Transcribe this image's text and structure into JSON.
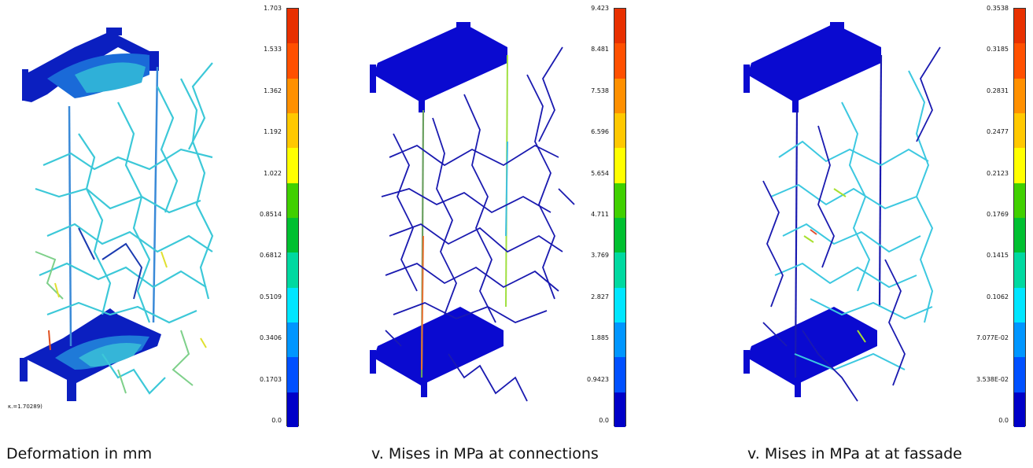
{
  "colors": [
    "#0000c8",
    "#0050ff",
    "#0096ff",
    "#00e6ff",
    "#00d9a0",
    "#00c030",
    "#40d000",
    "#ffff00",
    "#ffc800",
    "#ff9000",
    "#ff5000",
    "#e83000"
  ],
  "panels": [
    {
      "caption": "Deformation in mm",
      "scale_note": "κ.=1.70289)",
      "ticks": [
        "1.703",
        "1.533",
        "1.362",
        "1.192",
        "1.022",
        "0.8514",
        "0.6812",
        "0.5109",
        "0.3406",
        "0.1703",
        "0.0"
      ]
    },
    {
      "caption": "v. Mises in MPa at connections",
      "ticks": [
        "9.423",
        "8.481",
        "7.538",
        "6.596",
        "5.654",
        "4.711",
        "3.769",
        "2.827",
        "1.885",
        "0.9423",
        "0.0"
      ]
    },
    {
      "caption": "v. Mises in MPa at  at fassade",
      "ticks": [
        "0.3538",
        "0.3185",
        "0.2831",
        "0.2477",
        "0.2123",
        "0.1769",
        "0.1415",
        "0.1062",
        "7.077E-02",
        "3.538E-02",
        "0.0"
      ]
    }
  ]
}
